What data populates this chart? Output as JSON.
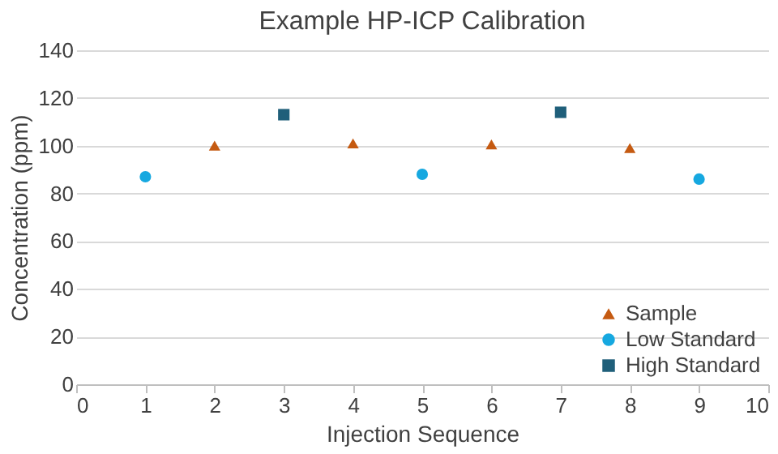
{
  "chart_data": {
    "type": "scatter",
    "title": "Example HP-ICP Calibration",
    "xlabel": "Injection Sequence",
    "ylabel": "Concentration (ppm)",
    "xlim": [
      0,
      10
    ],
    "xticks": [
      0,
      1,
      2,
      3,
      4,
      5,
      6,
      7,
      8,
      9,
      10
    ],
    "ylim": [
      0,
      140
    ],
    "yticks": [
      0,
      20,
      40,
      60,
      80,
      100,
      120,
      140
    ],
    "grid": "y",
    "legend": "bottom right",
    "series": [
      {
        "name": "Sample",
        "color": "#c55a11",
        "marker": "triangle",
        "x": [
          2,
          4,
          6,
          8
        ],
        "values": [
          100,
          101,
          100.5,
          99
        ]
      },
      {
        "name": "Low Standard",
        "color": "#16a8e0",
        "marker": "circle",
        "x": [
          1,
          5,
          9
        ],
        "values": [
          87,
          88,
          86
        ]
      },
      {
        "name": "High Standard",
        "color": "#1f5f7a",
        "marker": "square",
        "x": [
          3,
          7
        ],
        "values": [
          113,
          114
        ]
      }
    ]
  }
}
